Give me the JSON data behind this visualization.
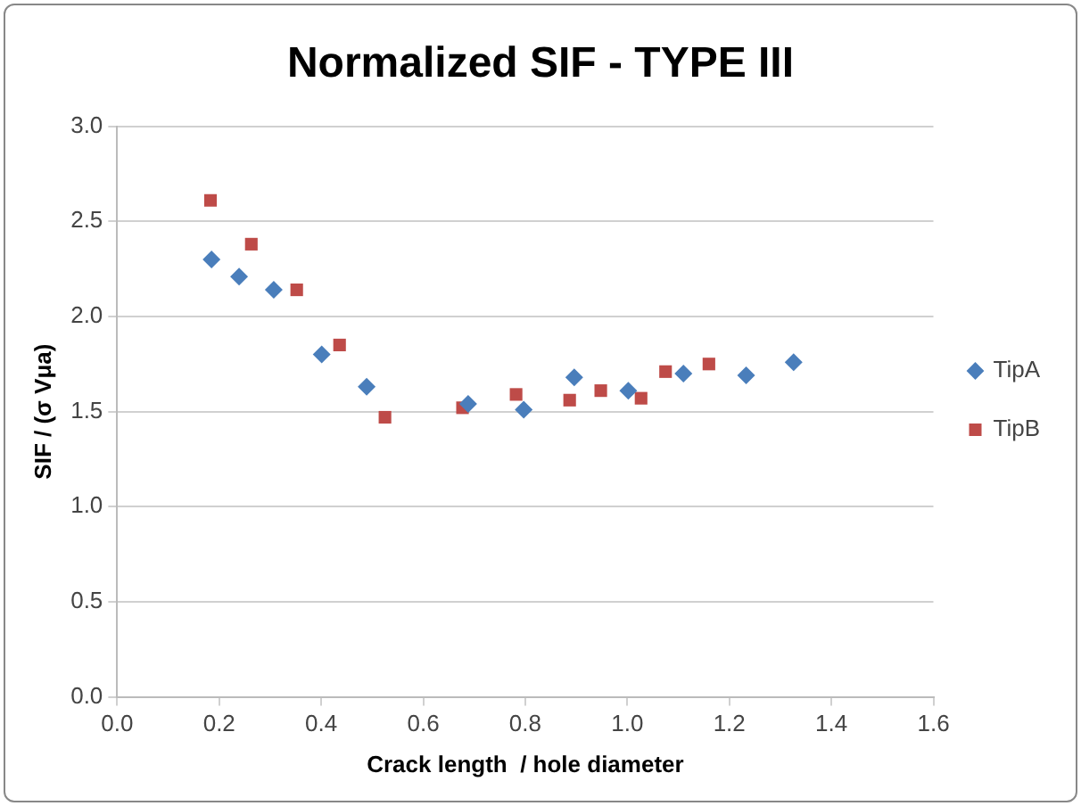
{
  "chart_data": {
    "type": "scatter",
    "title": "Normalized SIF - TYPE III",
    "xlabel": "Crack length  / hole diameter",
    "ylabel": "SIF / (σ Vμa)",
    "xlim": [
      0,
      1.6
    ],
    "xticks": [
      {
        "value": 0,
        "label": "0.0"
      },
      {
        "value": 0.2,
        "label": "0.2"
      },
      {
        "value": 0.4,
        "label": "0.4"
      },
      {
        "value": 0.6,
        "label": "0.6"
      },
      {
        "value": 0.8,
        "label": "0.8"
      },
      {
        "value": 1,
        "label": "1.0"
      },
      {
        "value": 1.2,
        "label": "1.2"
      },
      {
        "value": 1.4,
        "label": "1.4"
      },
      {
        "value": 1.6,
        "label": "1.6"
      }
    ],
    "ylim": [
      0,
      3
    ],
    "yticks": [
      {
        "value": 0,
        "label": "0.0"
      },
      {
        "value": 0.5,
        "label": "0.5"
      },
      {
        "value": 1,
        "label": "1.0"
      },
      {
        "value": 1.5,
        "label": "1.5"
      },
      {
        "value": 2,
        "label": "2.0"
      },
      {
        "value": 2.5,
        "label": "2.5"
      },
      {
        "value": 3,
        "label": "3.0"
      }
    ],
    "grid": "y",
    "legend": "right",
    "series": [
      {
        "name": "TipA",
        "color": "#4a7ebb",
        "marker": "diamond",
        "x": [
          0.185,
          0.239,
          0.307,
          0.401,
          0.489,
          0.688,
          0.797,
          0.896,
          1.002,
          1.11,
          1.233,
          1.326
        ],
        "values": [
          2.3,
          2.21,
          2.14,
          1.8,
          1.63,
          1.54,
          1.51,
          1.68,
          1.61,
          1.7,
          1.69,
          1.76
        ]
      },
      {
        "name": "TipB",
        "color": "#be4b48",
        "marker": "square",
        "x": [
          0.183,
          0.263,
          0.352,
          0.436,
          0.525,
          0.677,
          0.782,
          0.887,
          0.948,
          1.027,
          1.075,
          1.16
        ],
        "values": [
          2.61,
          2.38,
          2.14,
          1.85,
          1.47,
          1.52,
          1.59,
          1.56,
          1.61,
          1.57,
          1.71,
          1.75
        ]
      }
    ]
  }
}
